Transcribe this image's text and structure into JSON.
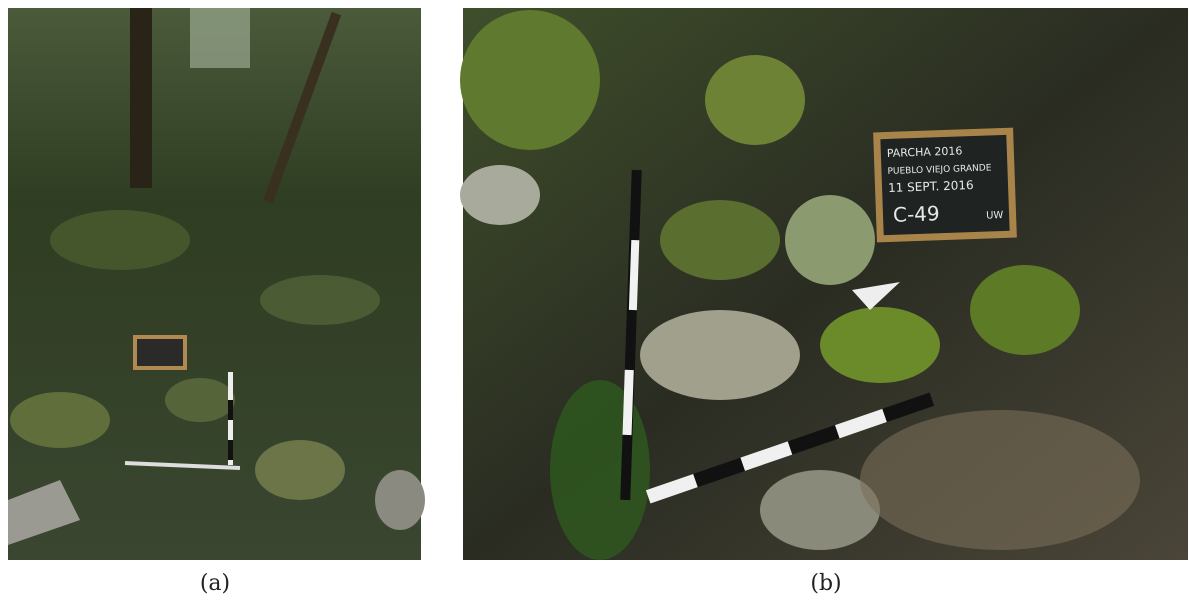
{
  "figure": {
    "panels": [
      {
        "caption": "(a)"
      },
      {
        "caption": "(b)",
        "board": [
          "PARCHA 2016",
          "PUEBLO VIEJO GRANDE",
          "11 SEPT. 2016",
          "C-49",
          "UW"
        ]
      }
    ]
  }
}
